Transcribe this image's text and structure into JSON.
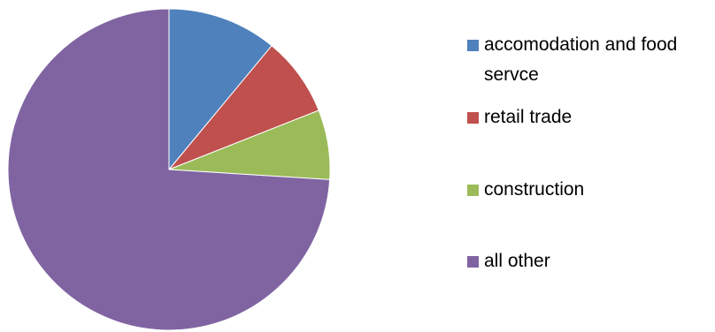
{
  "chart_data": {
    "type": "pie",
    "title": "",
    "slices": [
      {
        "label": "accomodation and food servce",
        "value": 11,
        "color": "#4F81BD"
      },
      {
        "label": "retail trade",
        "value": 8,
        "color": "#C0504D"
      },
      {
        "label": "construction",
        "value": 7,
        "color": "#9BBB59"
      },
      {
        "label": "all other",
        "value": 74,
        "color": "#8064A2"
      }
    ],
    "start_angle_deg": 0,
    "direction": "clockwise",
    "legend": {
      "position": "right",
      "items": [
        {
          "label": "accomodation and food servce",
          "color": "#4F81BD"
        },
        {
          "label": "retail trade",
          "color": "#C0504D"
        },
        {
          "label": "construction",
          "color": "#9BBB59"
        },
        {
          "label": "all other",
          "color": "#8064A2"
        }
      ]
    }
  }
}
